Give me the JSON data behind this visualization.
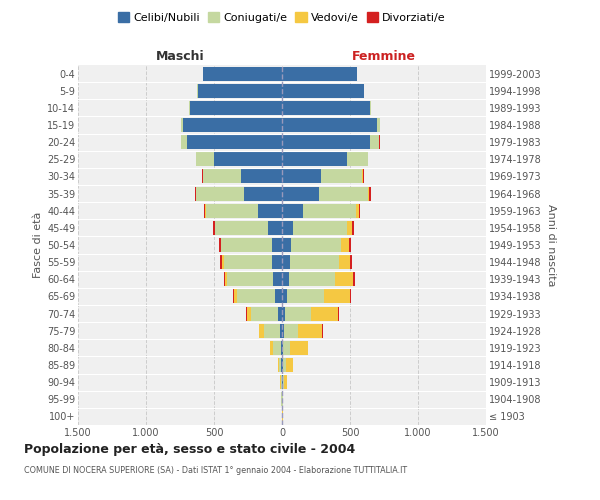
{
  "age_groups": [
    "100+",
    "95-99",
    "90-94",
    "85-89",
    "80-84",
    "75-79",
    "70-74",
    "65-69",
    "60-64",
    "55-59",
    "50-54",
    "45-49",
    "40-44",
    "35-39",
    "30-34",
    "25-29",
    "20-24",
    "15-19",
    "10-14",
    "5-9",
    "0-4"
  ],
  "birth_years": [
    "≤ 1903",
    "1904-1908",
    "1909-1913",
    "1914-1918",
    "1919-1923",
    "1924-1928",
    "1929-1933",
    "1934-1938",
    "1939-1943",
    "1944-1948",
    "1949-1953",
    "1954-1958",
    "1959-1963",
    "1964-1968",
    "1969-1973",
    "1974-1978",
    "1979-1983",
    "1984-1988",
    "1989-1993",
    "1994-1998",
    "1999-2003"
  ],
  "males": {
    "celibi": [
      2,
      2,
      3,
      5,
      8,
      15,
      30,
      50,
      65,
      70,
      75,
      100,
      180,
      280,
      300,
      500,
      700,
      730,
      680,
      620,
      580
    ],
    "coniugati": [
      1,
      2,
      8,
      18,
      55,
      120,
      200,
      280,
      340,
      360,
      370,
      390,
      380,
      350,
      280,
      130,
      45,
      15,
      5,
      2,
      1
    ],
    "vedovi": [
      0,
      0,
      2,
      5,
      25,
      35,
      30,
      25,
      15,
      8,
      5,
      4,
      3,
      2,
      1,
      0,
      0,
      0,
      0,
      0,
      0
    ],
    "divorziati": [
      0,
      0,
      0,
      0,
      1,
      2,
      3,
      5,
      10,
      15,
      12,
      10,
      8,
      10,
      5,
      2,
      1,
      0,
      0,
      0,
      0
    ]
  },
  "females": {
    "nubili": [
      2,
      3,
      5,
      8,
      10,
      15,
      25,
      40,
      50,
      60,
      65,
      80,
      155,
      270,
      290,
      480,
      650,
      700,
      650,
      600,
      550
    ],
    "coniugate": [
      1,
      2,
      8,
      20,
      50,
      100,
      190,
      270,
      340,
      360,
      370,
      400,
      390,
      360,
      300,
      150,
      65,
      20,
      5,
      2,
      1
    ],
    "vedove": [
      1,
      5,
      25,
      50,
      130,
      180,
      200,
      190,
      130,
      80,
      55,
      35,
      20,
      10,
      5,
      2,
      1,
      0,
      0,
      0,
      0
    ],
    "divorziate": [
      0,
      0,
      0,
      1,
      2,
      3,
      4,
      7,
      15,
      18,
      15,
      15,
      12,
      12,
      8,
      3,
      1,
      0,
      0,
      0,
      0
    ]
  },
  "colors": {
    "celibi": "#3a6ea5",
    "coniugati": "#c5d8a0",
    "vedovi": "#f5c842",
    "divorziati": "#d42020"
  },
  "title": "Popolazione per età, sesso e stato civile - 2004",
  "subtitle": "COMUNE DI NOCERA SUPERIORE (SA) - Dati ISTAT 1° gennaio 2004 - Elaborazione TUTTITALIA.IT",
  "xlabel_left": "Maschi",
  "xlabel_right": "Femmine",
  "ylabel_left": "Fasce di età",
  "ylabel_right": "Anni di nascita",
  "xlim": 1500,
  "background_color": "#ffffff",
  "grid_color": "#cccccc",
  "ax_bg": "#f0f0f0"
}
